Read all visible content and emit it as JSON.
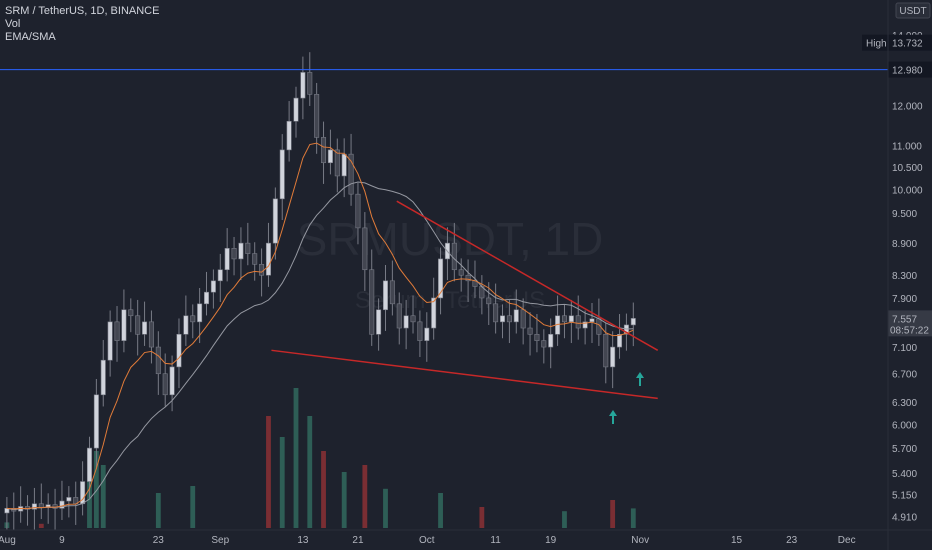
{
  "legend": {
    "symbol_line": "SRM / TetherUS, 1D, BINANCE",
    "vol_label": "Vol",
    "ema_label": "EMA/SMA"
  },
  "currency_label": "USDT",
  "watermark": {
    "symbol": "SRMUSDT, 1D",
    "name": "Serum / TetherUS"
  },
  "price_labels": {
    "high_label": "High",
    "high_value": "13.732",
    "hline_value": "12.980",
    "last_price": "7.557",
    "countdown": "08:57:22"
  },
  "chart_data": {
    "type": "candlestick",
    "y_scale": "log",
    "ylim": [
      4.77,
      15.1
    ],
    "y_ticks": [
      "14.000",
      "13.000",
      "12.000",
      "11.000",
      "10.500",
      "10.000",
      "9.500",
      "8.900",
      "8.300",
      "7.900",
      "7.100",
      "6.700",
      "6.300",
      "6.000",
      "5.700",
      "5.400",
      "5.150",
      "4.910"
    ],
    "x_ticks": [
      {
        "label": "Aug",
        "day": 0
      },
      {
        "label": "9",
        "day": 8
      },
      {
        "label": "23",
        "day": 22
      },
      {
        "label": "Sep",
        "day": 31
      },
      {
        "label": "13",
        "day": 43
      },
      {
        "label": "21",
        "day": 51
      },
      {
        "label": "Oct",
        "day": 61
      },
      {
        "label": "11",
        "day": 71
      },
      {
        "label": "19",
        "day": 79
      },
      {
        "label": "Nov",
        "day": 92
      },
      {
        "label": "15",
        "day": 106
      },
      {
        "label": "23",
        "day": 114
      },
      {
        "label": "Dec",
        "day": 122
      }
    ],
    "x_range_days": [
      -1,
      128
    ],
    "horizontal_line": 12.98,
    "colors": {
      "up": "#b2b5be",
      "down": "#d1d4dc",
      "vol_up": "#2e5e56",
      "vol_down": "#7a2e33",
      "ema": "#e07b39",
      "sma": "#9598a1",
      "trend": "#c62828",
      "hline": "#2962ff",
      "arrow": "#26a69a"
    },
    "closes": [
      5.0,
      4.97,
      5.02,
      4.99,
      5.05,
      5.01,
      5.04,
      5.0,
      5.08,
      5.12,
      5.05,
      5.3,
      5.7,
      6.4,
      6.9,
      7.5,
      7.2,
      7.7,
      7.6,
      7.3,
      7.5,
      7.1,
      6.7,
      6.4,
      6.8,
      7.3,
      7.6,
      7.5,
      7.8,
      8.0,
      8.2,
      8.4,
      8.8,
      8.6,
      8.9,
      8.7,
      8.5,
      8.3,
      8.9,
      9.8,
      10.9,
      11.6,
      12.2,
      12.9,
      12.3,
      11.2,
      10.6,
      10.9,
      10.3,
      10.8,
      9.9,
      9.2,
      8.4,
      7.3,
      7.7,
      8.2,
      7.8,
      7.4,
      7.6,
      7.5,
      7.2,
      7.4,
      7.9,
      8.6,
      8.9,
      8.4,
      8.3,
      8.2,
      8.1,
      7.9,
      7.8,
      7.5,
      7.6,
      7.5,
      7.7,
      7.4,
      7.3,
      7.2,
      7.1,
      7.3,
      7.6,
      7.5,
      7.6,
      7.4,
      7.5,
      7.55,
      7.3,
      6.8,
      7.1,
      7.3,
      7.45,
      7.557
    ],
    "volume": [
      {
        "day": 0,
        "value": 0.04,
        "dir": "up"
      },
      {
        "day": 5,
        "value": 0.03,
        "dir": "down"
      },
      {
        "day": 12,
        "value": 0.35,
        "dir": "up"
      },
      {
        "day": 13,
        "value": 0.55,
        "dir": "up"
      },
      {
        "day": 14,
        "value": 0.45,
        "dir": "up"
      },
      {
        "day": 22,
        "value": 0.25,
        "dir": "up"
      },
      {
        "day": 27,
        "value": 0.3,
        "dir": "up"
      },
      {
        "day": 38,
        "value": 0.8,
        "dir": "down"
      },
      {
        "day": 40,
        "value": 0.65,
        "dir": "up"
      },
      {
        "day": 42,
        "value": 1.0,
        "dir": "up"
      },
      {
        "day": 44,
        "value": 0.8,
        "dir": "up"
      },
      {
        "day": 46,
        "value": 0.55,
        "dir": "down"
      },
      {
        "day": 49,
        "value": 0.4,
        "dir": "up"
      },
      {
        "day": 52,
        "value": 0.45,
        "dir": "down"
      },
      {
        "day": 55,
        "value": 0.28,
        "dir": "up"
      },
      {
        "day": 63,
        "value": 0.25,
        "dir": "up"
      },
      {
        "day": 69,
        "value": 0.15,
        "dir": "down"
      },
      {
        "day": 81,
        "value": 0.12,
        "dir": "up"
      },
      {
        "day": 88,
        "value": 0.2,
        "dir": "down"
      },
      {
        "day": 91,
        "value": 0.14,
        "dir": "up"
      }
    ]
  }
}
